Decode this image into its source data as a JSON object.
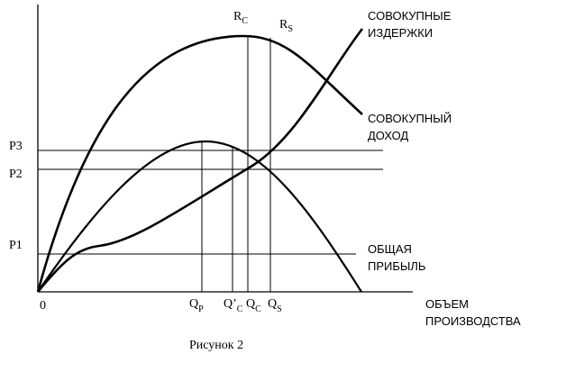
{
  "figure": {
    "caption": "Рисунок 2",
    "origin": "0",
    "price_labels": [
      "P3",
      "P2",
      "P1"
    ],
    "quantity_labels": {
      "qp": {
        "main": "Q",
        "sub": "P"
      },
      "qc_prime": {
        "main": "Q’",
        "sub": "C"
      },
      "qc": {
        "main": "Q",
        "sub": "C"
      },
      "qs": {
        "main": "Q",
        "sub": "S"
      }
    },
    "revenue_points": {
      "rc": {
        "main": "R",
        "sub": "C"
      },
      "rs": {
        "main": "R",
        "sub": "S"
      }
    },
    "curve_labels": {
      "total_cost": [
        "СОВОКУПНЫЕ",
        "ИЗДЕРЖКИ"
      ],
      "total_revenue": [
        "СОВОКУПНЫЙ",
        "ДОХОД"
      ],
      "total_profit": [
        "ОБЩАЯ",
        "ПРИБЫЛЬ"
      ],
      "x_axis": [
        "ОБЪЕМ",
        "ПРОИЗВОДСТВА"
      ]
    }
  }
}
